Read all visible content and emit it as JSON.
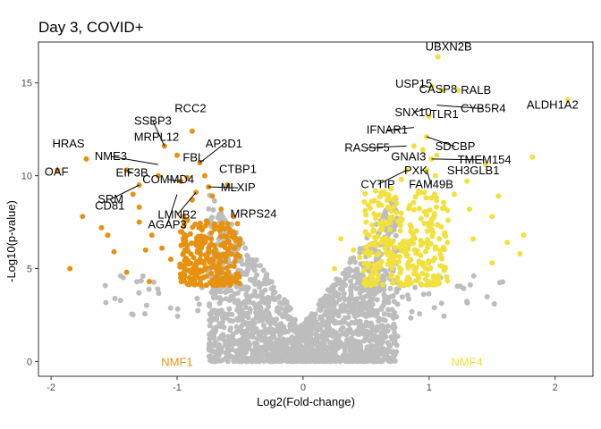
{
  "chart_data": {
    "type": "scatter",
    "title": "Day 3, COVID+",
    "xlabel": "Log2(Fold-change)",
    "ylabel": "-Log10(p-value)",
    "xlim": [
      -2.1,
      2.3
    ],
    "ylim": [
      -0.8,
      17.2
    ],
    "xticks": [
      -2,
      -1,
      0,
      1,
      2
    ],
    "yticks": [
      0,
      5,
      10,
      15
    ],
    "grid": false,
    "legend": "none",
    "colors": {
      "background": "#bdbdbd",
      "nmf1": "#e69210",
      "nmf4": "#f2e03c"
    },
    "group_labels": [
      {
        "name": "NMF1",
        "x": -1.0,
        "y": 0.0,
        "color": "#e69210"
      },
      {
        "name": "NMF4",
        "x": 1.3,
        "y": 0.0,
        "color": "#f2e03c"
      }
    ],
    "series": [
      {
        "name": "",
        "color": "#e69210",
        "points": [
          [
            -1.95,
            10.3
          ],
          [
            -1.72,
            10.9
          ],
          [
            -1.4,
            10.3
          ],
          [
            -1.3,
            9.5
          ],
          [
            -1.15,
            10.0
          ],
          [
            -1.1,
            11.6
          ],
          [
            -1.0,
            11.1
          ],
          [
            -0.97,
            9.7
          ],
          [
            -0.92,
            9.9
          ],
          [
            -0.88,
            12.4
          ],
          [
            -0.85,
            9.1
          ],
          [
            -0.82,
            10.7
          ],
          [
            -0.78,
            10.0
          ],
          [
            -0.75,
            9.4
          ],
          [
            -1.35,
            9.0
          ],
          [
            -1.75,
            7.8
          ],
          [
            -1.6,
            7.2
          ],
          [
            -1.3,
            8.3
          ],
          [
            -1.3,
            7.5
          ],
          [
            -1.2,
            6.8
          ],
          [
            -1.12,
            6.1
          ],
          [
            -1.85,
            5.0
          ],
          [
            -1.5,
            5.9
          ],
          [
            -1.4,
            4.8
          ],
          [
            -1.22,
            4.3
          ],
          [
            -0.95,
            7.8
          ],
          [
            -0.88,
            8.7
          ],
          [
            -0.72,
            8.9
          ],
          [
            -0.6,
            9.5
          ],
          [
            -0.8,
            7.2
          ],
          [
            -1.05,
            5.5
          ],
          [
            -0.65,
            8.2
          ],
          [
            -0.55,
            7.8
          ],
          [
            -1.55,
            6.8
          ],
          [
            -1.25,
            6.0
          ]
        ]
      },
      {
        "name": "",
        "color": "#f2e03c",
        "points": [
          [
            1.07,
            16.4
          ],
          [
            1.02,
            14.8
          ],
          [
            1.1,
            14.6
          ],
          [
            1.23,
            14.6
          ],
          [
            1.0,
            13.2
          ],
          [
            0.98,
            12.1
          ],
          [
            0.88,
            11.6
          ],
          [
            0.95,
            11.4
          ],
          [
            0.82,
            10.3
          ],
          [
            1.02,
            10.9
          ],
          [
            1.06,
            11.1
          ],
          [
            0.98,
            10.3
          ],
          [
            1.05,
            10.0
          ],
          [
            2.1,
            14.1
          ],
          [
            1.82,
            11.0
          ],
          [
            1.45,
            10.6
          ],
          [
            1.3,
            9.7
          ],
          [
            1.2,
            9.0
          ],
          [
            1.55,
            8.9
          ],
          [
            1.5,
            7.8
          ],
          [
            1.62,
            6.4
          ],
          [
            1.72,
            5.8
          ],
          [
            1.5,
            5.3
          ],
          [
            0.3,
            6.6
          ],
          [
            0.4,
            6.0
          ],
          [
            0.25,
            5.0
          ],
          [
            0.5,
            7.5
          ],
          [
            0.7,
            9.3
          ],
          [
            1.35,
            6.6
          ],
          [
            1.75,
            6.8
          ],
          [
            1.32,
            8.2
          ],
          [
            0.6,
            8.4
          ],
          [
            0.78,
            9.8
          ],
          [
            1.15,
            7.6
          ],
          [
            0.45,
            5.6
          ]
        ]
      }
    ],
    "annotations": [
      {
        "text": "UBXN2B",
        "x": 1.07,
        "y": 16.4
      },
      {
        "text": "USP15",
        "x": 1.02,
        "y": 14.8
      },
      {
        "text": "CASP8",
        "x": 1.1,
        "y": 14.6
      },
      {
        "text": "RALB",
        "x": 1.23,
        "y": 14.6
      },
      {
        "text": "SNX10",
        "x": 0.98,
        "y": 13.6
      },
      {
        "text": "CYB5R4",
        "x": 1.06,
        "y": 13.8
      },
      {
        "text": "ALDH1A2",
        "x": 2.1,
        "y": 14.1
      },
      {
        "text": "IFNAR1",
        "x": 0.88,
        "y": 12.6
      },
      {
        "text": "TLR1",
        "x": 1.0,
        "y": 13.2
      },
      {
        "text": "RASSF5",
        "x": 0.82,
        "y": 11.6
      },
      {
        "text": "GNAI3",
        "x": 0.95,
        "y": 11.4
      },
      {
        "text": "SDCBP",
        "x": 0.98,
        "y": 12.1
      },
      {
        "text": "PXK",
        "x": 0.98,
        "y": 10.6
      },
      {
        "text": "TMEM154",
        "x": 1.02,
        "y": 10.9
      },
      {
        "text": "CYTIP",
        "x": 0.82,
        "y": 10.3
      },
      {
        "text": "FAM49B",
        "x": 0.98,
        "y": 10.3
      },
      {
        "text": "SH3GLB1",
        "x": 1.45,
        "y": 10.6
      },
      {
        "text": "SSBP3",
        "x": -1.1,
        "y": 11.6
      },
      {
        "text": "RCC2",
        "x": -0.88,
        "y": 12.4
      },
      {
        "text": "MRPL12",
        "x": -1.0,
        "y": 11.1
      },
      {
        "text": "HRAS",
        "x": -1.72,
        "y": 10.9
      },
      {
        "text": "NME3",
        "x": -1.15,
        "y": 10.6
      },
      {
        "text": "FBL",
        "x": -0.92,
        "y": 10.3
      },
      {
        "text": "AP3D1",
        "x": -0.82,
        "y": 10.7
      },
      {
        "text": "OAF",
        "x": -1.95,
        "y": 10.3
      },
      {
        "text": "EIF3B",
        "x": -1.4,
        "y": 10.3
      },
      {
        "text": "COMMD4",
        "x": -0.97,
        "y": 9.7
      },
      {
        "text": "CTBP1",
        "x": -0.78,
        "y": 10.0
      },
      {
        "text": "SRM",
        "x": -1.3,
        "y": 9.5
      },
      {
        "text": "CD81",
        "x": -1.35,
        "y": 9.0
      },
      {
        "text": "LMNB2",
        "x": -0.85,
        "y": 9.1
      },
      {
        "text": "MLXIP",
        "x": -0.75,
        "y": 9.4
      },
      {
        "text": "AGAP3",
        "x": -1.0,
        "y": 9.0
      },
      {
        "text": "MRPS24",
        "x": -0.72,
        "y": 8.9
      }
    ]
  }
}
